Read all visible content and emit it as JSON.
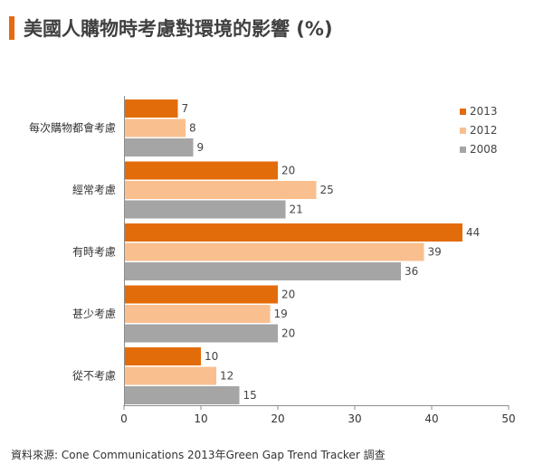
{
  "title": "美國人購物時考慮對環境的影響 (%)",
  "source": "資料來源: Cone Communications  2013年Green  Gap Trend Tracker 調查",
  "chart_data": {
    "type": "bar",
    "orientation": "horizontal",
    "title": "美國人購物時考慮對環境的影響 (%)",
    "categories": [
      "每次購物都會考慮",
      "經常考慮",
      "有時考慮",
      "甚少考慮",
      "從不考慮"
    ],
    "series": [
      {
        "name": "2013",
        "color": "#e36c0a",
        "values": [
          7,
          20,
          44,
          20,
          10
        ]
      },
      {
        "name": "2012",
        "color": "#fabf8f",
        "values": [
          8,
          25,
          39,
          19,
          12
        ]
      },
      {
        "name": "2008",
        "color": "#a5a5a5",
        "values": [
          9,
          21,
          36,
          20,
          15
        ]
      }
    ],
    "xlim": [
      0,
      50
    ],
    "xticks": [
      0,
      10,
      20,
      30,
      40,
      50
    ],
    "grid": false,
    "legend_position": "top-right"
  }
}
